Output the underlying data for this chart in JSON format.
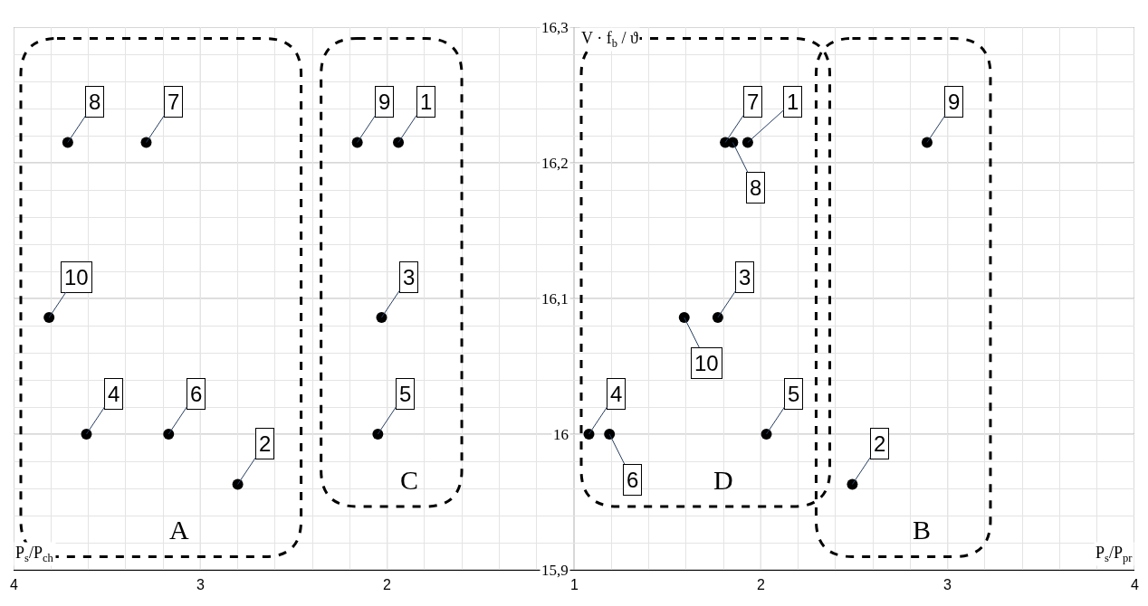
{
  "chart_data": [
    {
      "type": "scatter",
      "xlabel": "P$_{s}$/P$_{ch}$",
      "xlim": [
        4,
        1
      ],
      "xticks": [
        4,
        3,
        2,
        1
      ],
      "ylim": [
        15.9,
        16.3
      ],
      "yticks": [
        {
          "value": 15.9,
          "label": "15,9"
        },
        {
          "value": 16.0,
          "label": "16"
        },
        {
          "value": 16.1,
          "label": "16,1"
        },
        {
          "value": 16.2,
          "label": "16,2"
        },
        {
          "value": 16.3,
          "label": "16,3"
        }
      ],
      "grid": true,
      "marker": "circle",
      "series": [
        {
          "name": "A",
          "color": "#000000",
          "x": [
            3.71,
            3.29,
            3.81,
            3.61,
            3.17,
            2.8
          ],
          "values": [
            16.215,
            16.215,
            16.086,
            16.0,
            16.0,
            15.963
          ]
        },
        {
          "name": "C",
          "color": "#000000",
          "x": [
            2.16,
            1.94,
            2.03,
            2.05
          ],
          "values": [
            16.215,
            16.215,
            16.086,
            16.0
          ]
        }
      ],
      "annotations": [
        {
          "text": "8",
          "x": 3.71,
          "y": 16.215
        },
        {
          "text": "7",
          "x": 3.29,
          "y": 16.215
        },
        {
          "text": "10",
          "x": 3.81,
          "y": 16.086
        },
        {
          "text": "4",
          "x": 3.61,
          "y": 16.0
        },
        {
          "text": "6",
          "x": 3.17,
          "y": 16.0
        },
        {
          "text": "2",
          "x": 2.8,
          "y": 15.963
        },
        {
          "text": "9",
          "x": 2.16,
          "y": 16.215
        },
        {
          "text": "1",
          "x": 1.94,
          "y": 16.215
        },
        {
          "text": "3",
          "x": 2.03,
          "y": 16.086
        },
        {
          "text": "5",
          "x": 2.05,
          "y": 16.0
        }
      ]
    },
    {
      "type": "scatter",
      "xlabel": "P$_{s}$/P$_{pr}$",
      "ylabel": "V · f$_{b}$ / ϑ",
      "xlim": [
        1,
        4
      ],
      "xticks": [
        {
          "value": 1,
          "label": null
        },
        2,
        3,
        4
      ],
      "ylim": [
        15.9,
        16.3
      ],
      "yticks": [
        15.9,
        16.0,
        16.1,
        16.2,
        16.3
      ],
      "tick_labels": "x",
      "grid": true,
      "marker": "circle",
      "series": [
        {
          "name": "D",
          "color": "#000000",
          "x": [
            1.81,
            1.85,
            1.93,
            1.77,
            1.59,
            1.08,
            1.19,
            2.03
          ],
          "values": [
            16.215,
            16.215,
            16.215,
            16.086,
            16.086,
            16.0,
            16.0,
            16.0
          ]
        },
        {
          "name": "B",
          "color": "#000000",
          "x": [
            2.89,
            2.49
          ],
          "values": [
            16.215,
            15.963
          ]
        }
      ],
      "annotations": [
        {
          "text": "7",
          "x": 1.81,
          "y": 16.215
        },
        {
          "text": "8",
          "x": 1.85,
          "y": 16.215
        },
        {
          "text": "1",
          "x": 1.93,
          "y": 16.215
        },
        {
          "text": "3",
          "x": 1.77,
          "y": 16.086
        },
        {
          "text": "10",
          "x": 1.59,
          "y": 16.086
        },
        {
          "text": "4",
          "x": 1.08,
          "y": 16.0
        },
        {
          "text": "6",
          "x": 1.19,
          "y": 16.0
        },
        {
          "text": "5",
          "x": 2.03,
          "y": 16.0
        },
        {
          "text": "9",
          "x": 2.89,
          "y": 16.215
        },
        {
          "text": "2",
          "x": 2.49,
          "y": 15.963
        }
      ]
    }
  ]
}
